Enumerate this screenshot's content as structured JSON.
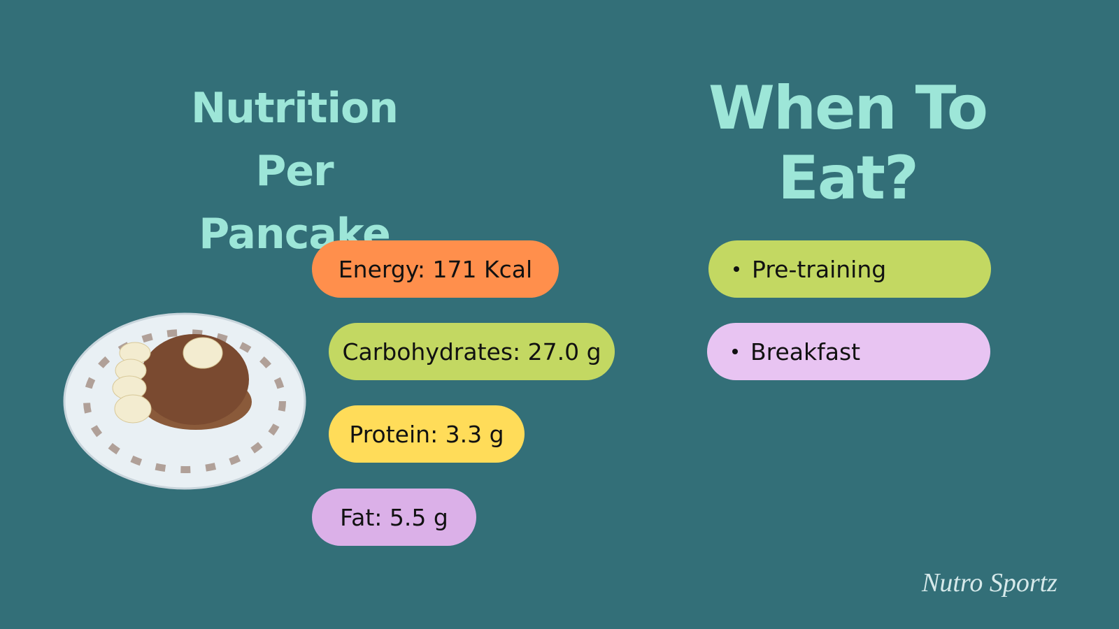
{
  "left_section": {
    "title": "Nutrition Per Pancake",
    "items": [
      "Energy: 171 Kcal",
      "Carbohydrates: 27.0 g",
      "Protein: 3.3 g",
      "Fat: 5.5 g"
    ]
  },
  "right_section": {
    "title": "When To Eat?",
    "items": [
      "Pre-training",
      "Breakfast"
    ]
  },
  "footer": {
    "logo": "Nutro Sportz"
  }
}
